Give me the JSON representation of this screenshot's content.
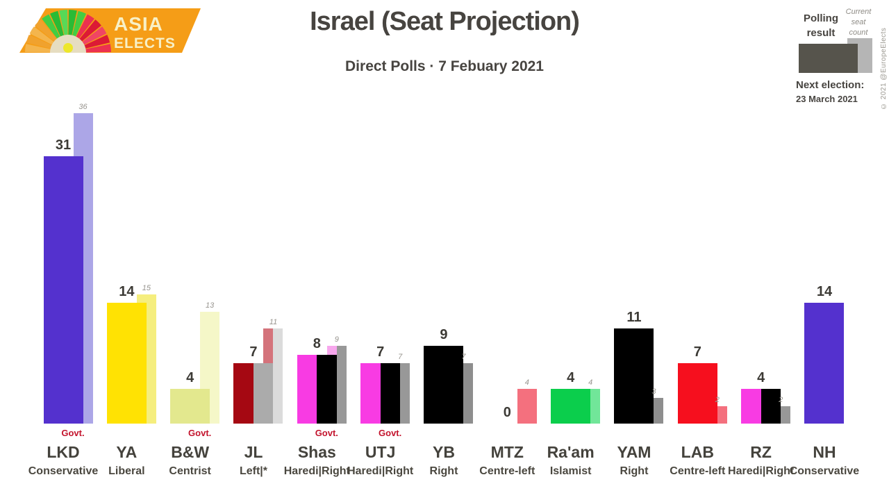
{
  "logo": {
    "line1": "ASIA",
    "line2": "ELECTS",
    "banner_color": "#f59d17",
    "text_color": "#f8f0c6",
    "fan_colors": [
      "#f4b54d",
      "#f0a22e",
      "#f4b54d",
      "#f0a22e",
      "#43cd43",
      "#2abb35",
      "#57d957",
      "#2abb35",
      "#43cd43",
      "#ec3150",
      "#dc1a35",
      "#f04563",
      "#dc1a35",
      "#ec3150"
    ],
    "hub_color": "#e6ddc1",
    "dot_color": "#ede72a"
  },
  "copyright": "© 2021 @EuropeElects",
  "chart_data": {
    "type": "bar",
    "title": "Israel (Seat Projection)",
    "subtitle": "Direct Polls · 7 Febuary 2021",
    "ylim": [
      0,
      37
    ],
    "grid": false,
    "legend_position": "top-right",
    "legend": {
      "polling": "Polling result",
      "current": "Current seat count",
      "polling_color": "#56544c",
      "current_color": "#b5b5b5"
    },
    "annotations": {
      "next_election_label": "Next election:",
      "next_election_date": "23 March 2021"
    },
    "govt_label": "Govt.",
    "govt_color": "#c3142d",
    "parties": [
      {
        "abbr": "LKD",
        "ideology": "Conservative",
        "govt": true,
        "poll": 31,
        "current": 36,
        "poll_colors": [
          "#5431ce"
        ],
        "current_colors": [
          "#aca6e7"
        ]
      },
      {
        "abbr": "YA",
        "ideology": "Liberal",
        "govt": false,
        "poll": 14,
        "current": 15,
        "poll_colors": [
          "#ffe203"
        ],
        "current_colors": [
          "#f5ee7e"
        ]
      },
      {
        "abbr": "B&W",
        "ideology": "Centrist",
        "govt": true,
        "poll": 4,
        "current": 13,
        "poll_colors": [
          "#e3e88e"
        ],
        "current_colors": [
          "#f5f7c8"
        ]
      },
      {
        "abbr": "JL",
        "ideology": "Left|*",
        "govt": false,
        "poll": 7,
        "current": 11,
        "poll_colors": [
          "#a50812",
          "#ababab"
        ],
        "current_colors": [
          "#d4737b",
          "#dbdbdb"
        ]
      },
      {
        "abbr": "Shas",
        "ideology": "Haredi|Right",
        "govt": true,
        "poll": 8,
        "current": 9,
        "poll_colors": [
          "#f83be3",
          "#000000"
        ],
        "current_colors": [
          "#f7a7ed",
          "#989898"
        ]
      },
      {
        "abbr": "UTJ",
        "ideology": "Haredi|Right",
        "govt": true,
        "poll": 7,
        "current": 7,
        "poll_colors": [
          "#f83be3",
          "#000000"
        ],
        "current_colors": [
          "#f7a7ed",
          "#989898"
        ]
      },
      {
        "abbr": "YB",
        "ideology": "Right",
        "govt": false,
        "poll": 9,
        "current": 7,
        "poll_colors": [
          "#000000"
        ],
        "current_colors": [
          "#8e8e8e"
        ]
      },
      {
        "abbr": "MTZ",
        "ideology": "Centre-left",
        "govt": false,
        "poll": 0,
        "current": 4,
        "poll_colors": [
          "#f4707e"
        ],
        "current_colors": [
          "#f4707e"
        ]
      },
      {
        "abbr": "Ra'am",
        "ideology": "Islamist",
        "govt": false,
        "poll": 4,
        "current": 4,
        "poll_colors": [
          "#0bce4c"
        ],
        "current_colors": [
          "#71e699"
        ]
      },
      {
        "abbr": "YAM",
        "ideology": "Right",
        "govt": false,
        "poll": 11,
        "current": 3,
        "poll_colors": [
          "#000000"
        ],
        "current_colors": [
          "#8e8e8e"
        ]
      },
      {
        "abbr": "LAB",
        "ideology": "Centre-left",
        "govt": false,
        "poll": 7,
        "current": 2,
        "poll_colors": [
          "#f60f1e"
        ],
        "current_colors": [
          "#f4707e"
        ]
      },
      {
        "abbr": "RZ",
        "ideology": "Haredi|Right",
        "govt": false,
        "poll": 4,
        "current": 2,
        "poll_colors": [
          "#f83be3",
          "#000000"
        ],
        "current_colors": [
          "#f7a7ed",
          "#989898"
        ]
      },
      {
        "abbr": "NH",
        "ideology": "Conservative",
        "govt": false,
        "poll": 14,
        "current": null,
        "poll_colors": [
          "#5431ce"
        ],
        "current_colors": []
      }
    ]
  }
}
